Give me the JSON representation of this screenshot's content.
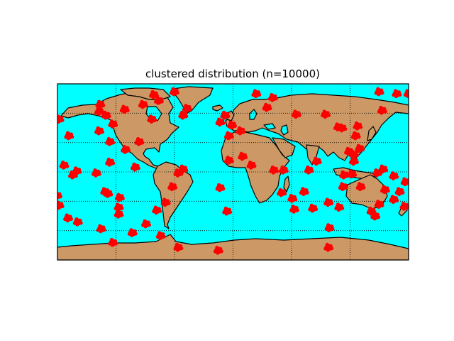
{
  "title": "clustered distribution (n=10000)",
  "colors": {
    "ocean": "#00ffff",
    "land": "#cc9966",
    "coastline": "#000000",
    "points": "#ff0000",
    "grid": "#000000",
    "background": "#ffffff"
  },
  "map": {
    "projection": "cylindrical equidistant",
    "lon_range": [
      -180,
      180
    ],
    "lat_range": [
      -90,
      90
    ],
    "meridians": [
      -180,
      -120,
      -60,
      0,
      60,
      120,
      180
    ],
    "parallels": [
      -90,
      -60,
      -30,
      0,
      30,
      60,
      90
    ],
    "grid_style": "dotted"
  },
  "chart_data": {
    "type": "scatter",
    "title": "clustered distribution (n=10000)",
    "n_points": 10000,
    "cluster_centers": [
      [
        -81,
        79
      ],
      [
        -60,
        82
      ],
      [
        -136,
        69
      ],
      [
        24,
        80
      ],
      [
        41,
        76
      ],
      [
        150,
        82
      ],
      [
        168,
        80
      ],
      [
        180,
        80
      ],
      [
        -178,
        54
      ],
      [
        -168,
        37
      ],
      [
        -137,
        62
      ],
      [
        -130,
        58
      ],
      [
        -111,
        64
      ],
      [
        -92,
        69
      ],
      [
        -76,
        73
      ],
      [
        -47,
        65
      ],
      [
        -51,
        58
      ],
      [
        -8,
        58
      ],
      [
        -13,
        51
      ],
      [
        -1,
        48
      ],
      [
        -4,
        37
      ],
      [
        8,
        42
      ],
      [
        35,
        66
      ],
      [
        65,
        59
      ],
      [
        95,
        59
      ],
      [
        108,
        46
      ],
      [
        112,
        45
      ],
      [
        128,
        47
      ],
      [
        153,
        63
      ],
      [
        126,
        37
      ],
      [
        -137,
        42
      ],
      [
        -123,
        49
      ],
      [
        -83,
        54
      ],
      [
        -96,
        31
      ],
      [
        -110,
        23
      ],
      [
        -126,
        31
      ],
      [
        -173,
        7
      ],
      [
        -164,
        -3
      ],
      [
        -160,
        1
      ],
      [
        -140,
        -1
      ],
      [
        -100,
        5
      ],
      [
        -126,
        10
      ],
      [
        -56,
        -1
      ],
      [
        -51,
        3
      ],
      [
        -62,
        -15
      ],
      [
        -69,
        -31
      ],
      [
        -78,
        -39
      ],
      [
        -128,
        -22
      ],
      [
        -131,
        -20
      ],
      [
        -116,
        -26
      ],
      [
        -169,
        -47
      ],
      [
        -178,
        -34
      ],
      [
        -159,
        -51
      ],
      [
        -117,
        -36
      ],
      [
        -117,
        -43
      ],
      [
        -135,
        -58
      ],
      [
        -89,
        -53
      ],
      [
        -74,
        -65
      ],
      [
        -103,
        -62
      ],
      [
        -123,
        -72
      ],
      [
        -56,
        -77
      ],
      [
        -15,
        -80
      ],
      [
        -6,
        -40
      ],
      [
        -13,
        -16
      ],
      [
        10,
        16
      ],
      [
        -4,
        12
      ],
      [
        19,
        7
      ],
      [
        42,
        2
      ],
      [
        52,
        2
      ],
      [
        50,
        -21
      ],
      [
        61,
        -27
      ],
      [
        86,
        11
      ],
      [
        78,
        2
      ],
      [
        73,
        -20
      ],
      [
        82,
        -37
      ],
      [
        98,
        -31
      ],
      [
        109,
        -36
      ],
      [
        99,
        -57
      ],
      [
        98,
        -77
      ],
      [
        63,
        -38
      ],
      [
        113,
        -15
      ],
      [
        124,
        11
      ],
      [
        119,
        21
      ],
      [
        124,
        18
      ],
      [
        130,
        24
      ],
      [
        148,
        -1
      ],
      [
        154,
        3
      ],
      [
        122,
        -2
      ],
      [
        114,
        -3
      ],
      [
        131,
        -15
      ],
      [
        156,
        -18
      ],
      [
        150,
        -33
      ],
      [
        165,
        -28
      ],
      [
        171,
        -20
      ],
      [
        176,
        -35
      ],
      [
        165,
        -4
      ],
      [
        142,
        -40
      ],
      [
        146,
        -45
      ],
      [
        177,
        -10
      ],
      [
        -180,
        -24
      ]
    ]
  }
}
